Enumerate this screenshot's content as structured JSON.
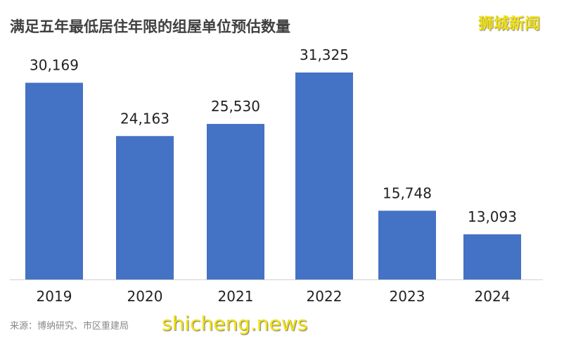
{
  "chart_data": {
    "type": "bar",
    "title": "满足五年最低居住年限的组屋单位预估数量",
    "categories": [
      "2019",
      "2020",
      "2021",
      "2022",
      "2023",
      "2024"
    ],
    "values": [
      30169,
      24163,
      25530,
      31325,
      15748,
      13093
    ],
    "value_labels": [
      "30,169",
      "24,163",
      "25,530",
      "31,325",
      "15,748",
      "13,093"
    ],
    "xlabel": "",
    "ylabel": "",
    "grid": false,
    "color": "#4472c4"
  },
  "source": "来源：博纳研究、市区重建局",
  "logo": "狮城新闻",
  "watermark": "shicheng.news"
}
